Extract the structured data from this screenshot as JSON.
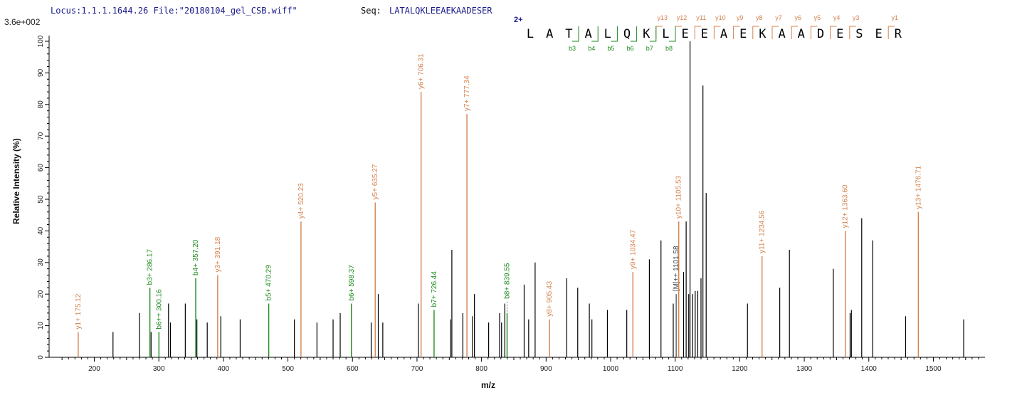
{
  "header": {
    "locus": "Locus:1.1.1.1644.26 File:\"20180104_gel_CSB.wiff\"",
    "seq_label": "Seq:",
    "seq_value": "LATALQKLEEAEKAADESER",
    "ymax_label": "3.6e+002",
    "charge": "2+"
  },
  "colors": {
    "y_ion": "#d4834f",
    "b_ion": "#1e8a1e",
    "other": "#000000",
    "precursor": "#444444",
    "header_text": "#1a1a8c"
  },
  "chart_data": {
    "type": "bar",
    "xlabel": "m/z",
    "ylabel": "Relative   Intensity (%)",
    "xlim": [
      130,
      1580
    ],
    "ylim": [
      0,
      100
    ],
    "x_ticks": [
      200,
      300,
      400,
      500,
      600,
      700,
      800,
      900,
      1000,
      1100,
      1200,
      1300,
      1400,
      1500
    ],
    "y_ticks": [
      0,
      10,
      20,
      30,
      40,
      50,
      60,
      70,
      80,
      90,
      100
    ],
    "peaks": [
      {
        "mz": 175.12,
        "i": 8,
        "type": "y",
        "label": "y1+ 175.12"
      },
      {
        "mz": 229,
        "i": 8,
        "type": "o"
      },
      {
        "mz": 270,
        "i": 14,
        "type": "o"
      },
      {
        "mz": 286.17,
        "i": 22,
        "type": "b",
        "label": "b3+ 286.17"
      },
      {
        "mz": 288,
        "i": 8,
        "type": "o"
      },
      {
        "mz": 300.16,
        "i": 8,
        "type": "b",
        "label": "b6++ 300.16"
      },
      {
        "mz": 315,
        "i": 17,
        "type": "o"
      },
      {
        "mz": 318,
        "i": 11,
        "type": "o"
      },
      {
        "mz": 341,
        "i": 17,
        "type": "o"
      },
      {
        "mz": 357.2,
        "i": 25,
        "type": "b",
        "label": "b4+ 357.20"
      },
      {
        "mz": 359,
        "i": 12,
        "type": "o"
      },
      {
        "mz": 375,
        "i": 11,
        "type": "o"
      },
      {
        "mz": 391.18,
        "i": 26,
        "type": "y",
        "label": "y3+ 391.18"
      },
      {
        "mz": 396,
        "i": 13,
        "type": "o"
      },
      {
        "mz": 426,
        "i": 12,
        "type": "o"
      },
      {
        "mz": 470.29,
        "i": 17,
        "type": "b",
        "label": "b5+ 470.29"
      },
      {
        "mz": 510,
        "i": 12,
        "type": "o"
      },
      {
        "mz": 520.23,
        "i": 43,
        "type": "y",
        "label": "y4+ 520.23"
      },
      {
        "mz": 545,
        "i": 11,
        "type": "o"
      },
      {
        "mz": 570,
        "i": 12,
        "type": "o"
      },
      {
        "mz": 581,
        "i": 14,
        "type": "o"
      },
      {
        "mz": 598.37,
        "i": 17,
        "type": "b",
        "label": "b6+ 598.37"
      },
      {
        "mz": 629,
        "i": 11,
        "type": "o"
      },
      {
        "mz": 635.27,
        "i": 49,
        "type": "y",
        "label": "y5+ 635.27"
      },
      {
        "mz": 640,
        "i": 20,
        "type": "o"
      },
      {
        "mz": 647,
        "i": 11,
        "type": "o"
      },
      {
        "mz": 702,
        "i": 17,
        "type": "o"
      },
      {
        "mz": 706.31,
        "i": 84,
        "type": "y",
        "label": "y6+ 706.31"
      },
      {
        "mz": 726.44,
        "i": 15,
        "type": "b",
        "label": "b7+ 726.44"
      },
      {
        "mz": 752,
        "i": 12,
        "type": "o"
      },
      {
        "mz": 754,
        "i": 34,
        "type": "o"
      },
      {
        "mz": 771,
        "i": 14,
        "type": "o"
      },
      {
        "mz": 777.34,
        "i": 77,
        "type": "y",
        "label": "y7+ 777.34"
      },
      {
        "mz": 786,
        "i": 13,
        "type": "o"
      },
      {
        "mz": 789,
        "i": 20,
        "type": "o"
      },
      {
        "mz": 811,
        "i": 11,
        "type": "o"
      },
      {
        "mz": 828,
        "i": 14,
        "type": "o"
      },
      {
        "mz": 831,
        "i": 11,
        "type": "o"
      },
      {
        "mz": 836,
        "i": 17,
        "type": "o"
      },
      {
        "mz": 839.55,
        "i": 14,
        "type": "b",
        "label": "b8+ 839.55"
      },
      {
        "mz": 866,
        "i": 23,
        "type": "o"
      },
      {
        "mz": 873,
        "i": 12,
        "type": "o"
      },
      {
        "mz": 883,
        "i": 30,
        "type": "o"
      },
      {
        "mz": 905.43,
        "i": 12,
        "type": "y",
        "label": "y8+ 905.43"
      },
      {
        "mz": 932,
        "i": 25,
        "type": "o"
      },
      {
        "mz": 949,
        "i": 22,
        "type": "o"
      },
      {
        "mz": 967,
        "i": 17,
        "type": "o"
      },
      {
        "mz": 971,
        "i": 12,
        "type": "o"
      },
      {
        "mz": 995,
        "i": 15,
        "type": "o"
      },
      {
        "mz": 1025,
        "i": 15,
        "type": "o"
      },
      {
        "mz": 1034.47,
        "i": 27,
        "type": "y",
        "label": "y9+ 1034.47"
      },
      {
        "mz": 1060,
        "i": 31,
        "type": "o"
      },
      {
        "mz": 1078,
        "i": 37,
        "type": "o"
      },
      {
        "mz": 1097,
        "i": 17,
        "type": "o"
      },
      {
        "mz": 1101.58,
        "i": 20,
        "type": "m",
        "label": "[M]++ 1101.58"
      },
      {
        "mz": 1105.53,
        "i": 43,
        "type": "y",
        "label": "y10+ 1105.53"
      },
      {
        "mz": 1113,
        "i": 27,
        "type": "o"
      },
      {
        "mz": 1117,
        "i": 43,
        "type": "o"
      },
      {
        "mz": 1121,
        "i": 20,
        "type": "o"
      },
      {
        "mz": 1123,
        "i": 100,
        "type": "o"
      },
      {
        "mz": 1127,
        "i": 20,
        "type": "o"
      },
      {
        "mz": 1131,
        "i": 21,
        "type": "o"
      },
      {
        "mz": 1135,
        "i": 21,
        "type": "o"
      },
      {
        "mz": 1140,
        "i": 25,
        "type": "o"
      },
      {
        "mz": 1143,
        "i": 86,
        "type": "o"
      },
      {
        "mz": 1148,
        "i": 52,
        "type": "o"
      },
      {
        "mz": 1212,
        "i": 17,
        "type": "o"
      },
      {
        "mz": 1234.56,
        "i": 32,
        "type": "y",
        "label": "y11+ 1234.56"
      },
      {
        "mz": 1262,
        "i": 22,
        "type": "o"
      },
      {
        "mz": 1277,
        "i": 34,
        "type": "o"
      },
      {
        "mz": 1345,
        "i": 28,
        "type": "o"
      },
      {
        "mz": 1363.6,
        "i": 40,
        "type": "y",
        "label": "y12+ 1363.60"
      },
      {
        "mz": 1371,
        "i": 14,
        "type": "o"
      },
      {
        "mz": 1373,
        "i": 15,
        "type": "o"
      },
      {
        "mz": 1389,
        "i": 44,
        "type": "o"
      },
      {
        "mz": 1406,
        "i": 37,
        "type": "o"
      },
      {
        "mz": 1457,
        "i": 13,
        "type": "o"
      },
      {
        "mz": 1476.71,
        "i": 46,
        "type": "y",
        "label": "y13+ 1476.71"
      },
      {
        "mz": 1547,
        "i": 12,
        "type": "o"
      }
    ],
    "sequence": [
      "L",
      "A",
      "T",
      "A",
      "L",
      "Q",
      "K",
      "L",
      "E",
      "E",
      "A",
      "E",
      "K",
      "A",
      "A",
      "D",
      "E",
      "S",
      "E",
      "R"
    ],
    "y_ion_labels": [
      {
        "num": "13",
        "after": 7
      },
      {
        "num": "12",
        "after": 8
      },
      {
        "num": "11",
        "after": 9
      },
      {
        "num": "10",
        "after": 10
      },
      {
        "num": "9",
        "after": 11
      },
      {
        "num": "8",
        "after": 12
      },
      {
        "num": "7",
        "after": 13
      },
      {
        "num": "6",
        "after": 14
      },
      {
        "num": "5",
        "after": 15
      },
      {
        "num": "4",
        "after": 16
      },
      {
        "num": "3",
        "after": 17
      },
      {
        "num": "1",
        "after": 19
      }
    ],
    "b_ion_labels": [
      {
        "num": "3",
        "after": 3
      },
      {
        "num": "4",
        "after": 4
      },
      {
        "num": "5",
        "after": 5
      },
      {
        "num": "6",
        "after": 6
      },
      {
        "num": "7",
        "after": 7
      },
      {
        "num": "8",
        "after": 8
      }
    ]
  }
}
